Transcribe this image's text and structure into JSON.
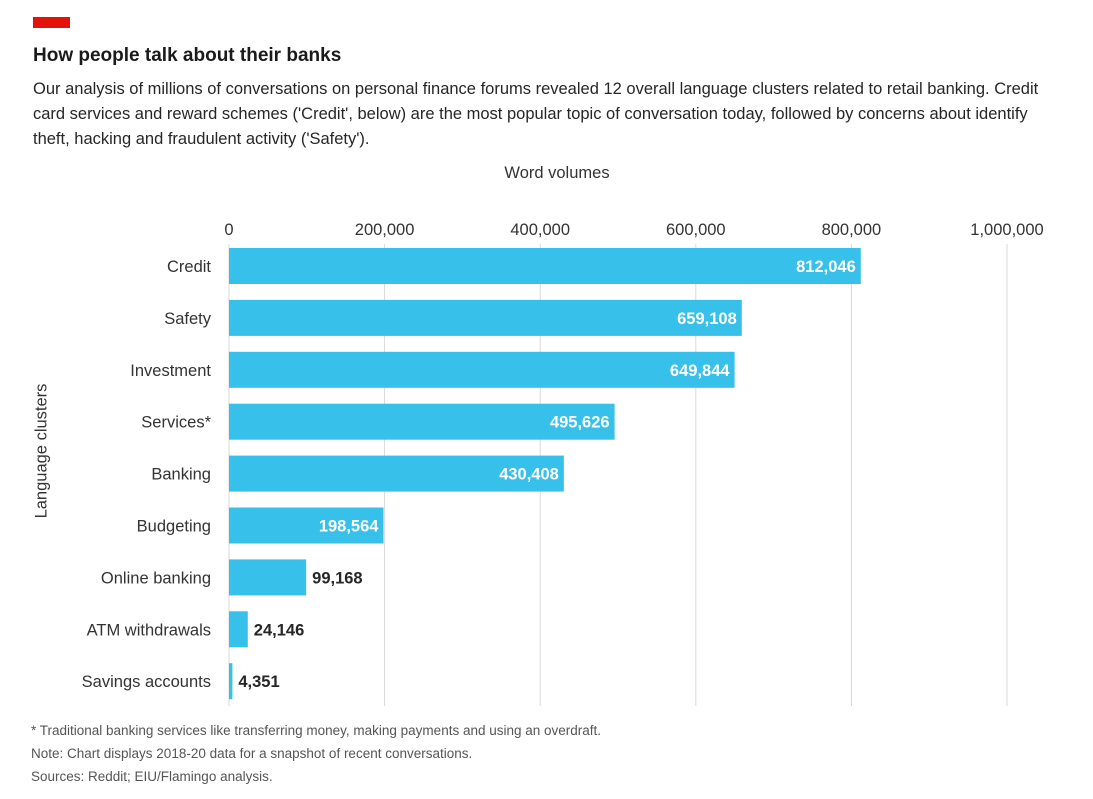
{
  "header": {
    "title": "How people talk about their banks",
    "subtitle": "Our analysis of millions of conversations on personal finance forums revealed 12 overall language clusters related to retail banking. Credit card services and reward schemes ('Credit', below) are the most popular topic of conversation today, followed by concerns about identify theft, hacking and fraudulent activity ('Safety')."
  },
  "colors": {
    "accent": "#e3120b",
    "bar": "#37c0ea",
    "grid": "#d9d9d9"
  },
  "chart_data": {
    "type": "bar",
    "orientation": "horizontal",
    "xlabel": "Word volumes",
    "ylabel": "Language clusters",
    "xlim": [
      0,
      1000000
    ],
    "xticks": [
      0,
      200000,
      400000,
      600000,
      800000,
      1000000
    ],
    "xtick_labels": [
      "0",
      "200,000",
      "400,000",
      "600,000",
      "800,000",
      "1,000,000"
    ],
    "grid": true,
    "axis_position": "top",
    "categories": [
      "Credit",
      "Safety",
      "Investment",
      "Services*",
      "Banking",
      "Budgeting",
      "Online banking",
      "ATM withdrawals",
      "Savings accounts"
    ],
    "values": [
      812046,
      659108,
      649844,
      495626,
      430408,
      198564,
      99168,
      24146,
      4351
    ],
    "value_labels": [
      "812,046",
      "659,108",
      "649,844",
      "495,626",
      "430,408",
      "198,564",
      "99,168",
      "24,146",
      "4,351"
    ]
  },
  "footnotes": [
    "* Traditional banking services like transferring money, making payments and using an overdraft.",
    "Note: Chart displays 2018-20 data for a snapshot of recent conversations.",
    "Sources: Reddit; EIU/Flamingo analysis."
  ]
}
